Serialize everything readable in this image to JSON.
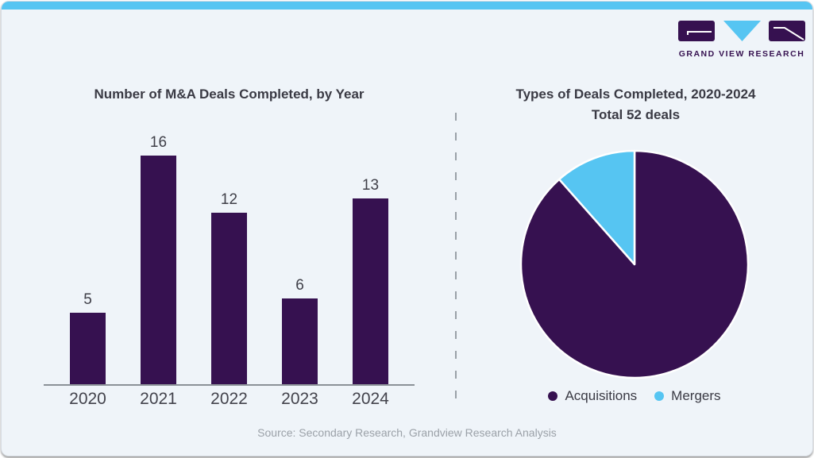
{
  "brand": {
    "logo_text": "GRAND VIEW RESEARCH",
    "purple": "#361150",
    "blue": "#56c5f2"
  },
  "source_note": "Source: Secondary Research, Grandview Research Analysis",
  "chart_data": [
    {
      "type": "bar",
      "title": "Number of M&A Deals Completed, by Year",
      "categories": [
        "2020",
        "2021",
        "2022",
        "2023",
        "2024"
      ],
      "values": [
        5,
        16,
        12,
        6,
        13
      ],
      "bar_color": "#361150",
      "value_labels_shown": true,
      "xlabel": "",
      "ylabel": "",
      "ylim": [
        0,
        16
      ],
      "grid": false,
      "legend": "none"
    },
    {
      "type": "pie",
      "title": "Types of Deals Completed, 2020-2024",
      "subtitle": "Total 52 deals",
      "total": 52,
      "series": [
        {
          "name": "Acquisitions",
          "value": 46,
          "color": "#361150"
        },
        {
          "name": "Mergers",
          "value": 6,
          "color": "#56c5f2"
        }
      ],
      "legend_position": "bottom",
      "start_angle_deg": 0
    }
  ]
}
